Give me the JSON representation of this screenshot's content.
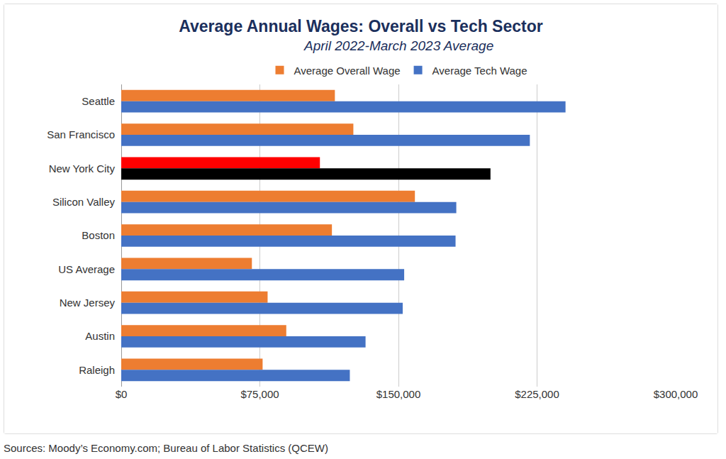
{
  "chart_data": {
    "type": "bar",
    "orientation": "horizontal",
    "title": "Average Annual Wages: Overall vs Tech Sector",
    "subtitle": "April 2022-March 2023 Average",
    "source": "Sources: Moody’s Economy.com; Bureau of Labor Statistics (QCEW)",
    "categories": [
      "Seattle",
      "San Francisco",
      "New York City",
      "Silicon Valley",
      "Boston",
      "US Average",
      "New Jersey",
      "Austin",
      "Raleigh"
    ],
    "series": [
      {
        "name": "Average Overall Wage",
        "colors": [
          "#ed7d31",
          "#ed7d31",
          "#ff0000",
          "#ed7d31",
          "#ed7d31",
          "#ed7d31",
          "#ed7d31",
          "#ed7d31",
          "#ed7d31"
        ],
        "values": [
          115600,
          125600,
          107500,
          158900,
          114000,
          70700,
          79200,
          89300,
          76500
        ]
      },
      {
        "name": "Average Tech Wage",
        "colors": [
          "#4472c4",
          "#4472c4",
          "#000000",
          "#4472c4",
          "#4472c4",
          "#4472c4",
          "#4472c4",
          "#4472c4",
          "#4472c4"
        ],
        "values": [
          240400,
          221100,
          199800,
          181300,
          180900,
          153100,
          152300,
          132200,
          123700
        ]
      }
    ],
    "xlim": [
      0,
      300000
    ],
    "xticks": [
      {
        "value": 0,
        "label": "$0"
      },
      {
        "value": 75000,
        "label": "$75,000"
      },
      {
        "value": 150000,
        "label": "$150,000"
      },
      {
        "value": 225000,
        "label": "$225,000"
      },
      {
        "value": 300000,
        "label": "$300,000"
      }
    ],
    "grid": true,
    "legend": "top"
  }
}
